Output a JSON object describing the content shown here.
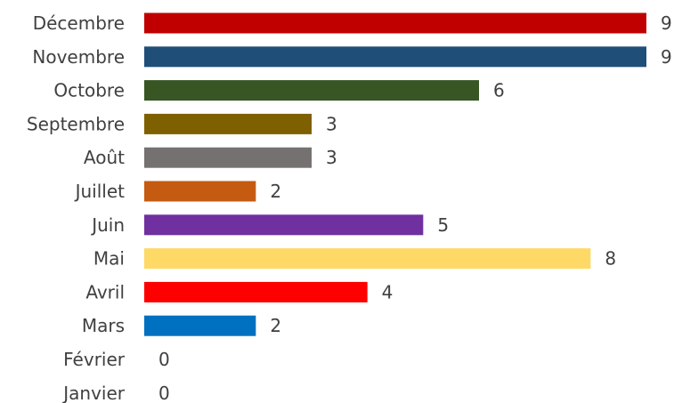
{
  "chart_data": {
    "type": "bar",
    "orientation": "horizontal",
    "categories": [
      "Décembre",
      "Novembre",
      "Octobre",
      "Septembre",
      "Août",
      "Juillet",
      "Juin",
      "Mai",
      "Avril",
      "Mars",
      "Février",
      "Janvier"
    ],
    "values": [
      9,
      9,
      6,
      3,
      3,
      2,
      5,
      8,
      4,
      2,
      0,
      0
    ],
    "colors": [
      "#C00000",
      "#1F4E79",
      "#375623",
      "#7F6000",
      "#767171",
      "#C55A11",
      "#7030A0",
      "#FFD966",
      "#FF0000",
      "#0070C0",
      "#FFFFFF",
      "#FFFFFF"
    ],
    "title": "",
    "xlabel": "",
    "ylabel": "",
    "xlim": [
      0,
      9
    ],
    "grid": false,
    "legend": "none",
    "data_labels": true
  }
}
